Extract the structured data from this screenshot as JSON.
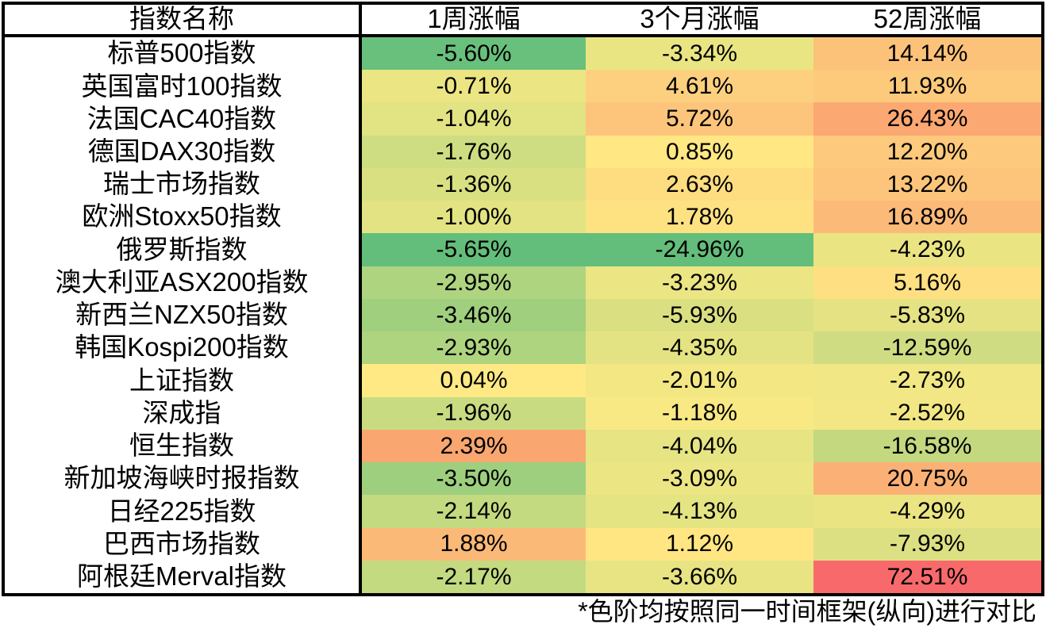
{
  "chart_data": {
    "type": "table",
    "columns": [
      "指数名称",
      "1周涨幅",
      "3个月涨幅",
      "52周涨幅"
    ],
    "rows": [
      {
        "name": "标普500指数",
        "values": [
          "-5.60%",
          "-3.34%",
          "14.14%"
        ],
        "colors": [
          "#69C07C",
          "#EAE583",
          "#FCC27A"
        ]
      },
      {
        "name": "英国富时100指数",
        "values": [
          "-0.71%",
          "4.61%",
          "11.93%"
        ],
        "colors": [
          "#EBE583",
          "#FDD07F",
          "#FDCA7C"
        ]
      },
      {
        "name": "法国CAC40指数",
        "values": [
          "-1.04%",
          "5.72%",
          "26.43%"
        ],
        "colors": [
          "#E2E383",
          "#FCC57B",
          "#FBA872"
        ]
      },
      {
        "name": "德国DAX30指数",
        "values": [
          "-1.76%",
          "0.85%",
          "12.20%"
        ],
        "colors": [
          "#CEDD81",
          "#FFE784",
          "#FDC97C"
        ]
      },
      {
        "name": "瑞士市场指数",
        "values": [
          "-1.36%",
          "2.63%",
          "13.22%"
        ],
        "colors": [
          "#D9E082",
          "#FEDD81",
          "#FCC57B"
        ]
      },
      {
        "name": "欧洲Stoxx50指数",
        "values": [
          "-1.00%",
          "1.78%",
          "16.89%"
        ],
        "colors": [
          "#E3E383",
          "#FEE282",
          "#FCBA78"
        ]
      },
      {
        "name": "俄罗斯指数",
        "values": [
          "-5.65%",
          "-24.96%",
          "-4.23%"
        ],
        "colors": [
          "#63BE7B",
          "#63BE7B",
          "#EAE483"
        ]
      },
      {
        "name": "澳大利亚ASX200指数",
        "values": [
          "-2.95%",
          "-3.23%",
          "5.16%"
        ],
        "colors": [
          "#AED47F",
          "#EBE583",
          "#FEE082"
        ]
      },
      {
        "name": "新西兰NZX50指数",
        "values": [
          "-3.46%",
          "-5.93%",
          "-5.83%"
        ],
        "colors": [
          "#A0CF7E",
          "#DAE082",
          "#E4E283"
        ]
      },
      {
        "name": "韩国Kospi200指数",
        "values": [
          "-2.93%",
          "-4.35%",
          "-12.59%"
        ],
        "colors": [
          "#AED47F",
          "#E4E383",
          "#D0DC81"
        ]
      },
      {
        "name": "上证指数",
        "values": [
          "0.04%",
          "-2.01%",
          "-2.73%"
        ],
        "colors": [
          "#FFE984",
          "#F2E783",
          "#F1E784"
        ]
      },
      {
        "name": "深成指",
        "values": [
          "-1.96%",
          "-1.18%",
          "-2.52%"
        ],
        "colors": [
          "#C9DB81",
          "#F8E984",
          "#F2E784"
        ]
      },
      {
        "name": "恒生指数",
        "values": [
          "2.39%",
          "-4.04%",
          "-16.58%"
        ],
        "colors": [
          "#F9A670",
          "#E6E483",
          "#C4D880"
        ]
      },
      {
        "name": "新加坡海峡时报指数",
        "values": [
          "-3.50%",
          "-3.09%",
          "20.75%"
        ],
        "colors": [
          "#9ECF7E",
          "#ECE583",
          "#FBB175"
        ]
      },
      {
        "name": "日经225指数",
        "values": [
          "-2.14%",
          "-4.13%",
          "-4.29%"
        ],
        "colors": [
          "#C4DA80",
          "#E5E483",
          "#EAE483"
        ]
      },
      {
        "name": "巴西市场指数",
        "values": [
          "1.88%",
          "1.12%",
          "-7.93%"
        ],
        "colors": [
          "#FBB977",
          "#FFE683",
          "#DDE082"
        ]
      },
      {
        "name": "阿根廷Merval指数",
        "values": [
          "-2.17%",
          "-3.66%",
          "72.51%"
        ],
        "colors": [
          "#C3DA80",
          "#E8E483",
          "#F8696B"
        ]
      }
    ]
  },
  "footnote": "*色阶均按照同一时间框架(纵向)进行对比"
}
